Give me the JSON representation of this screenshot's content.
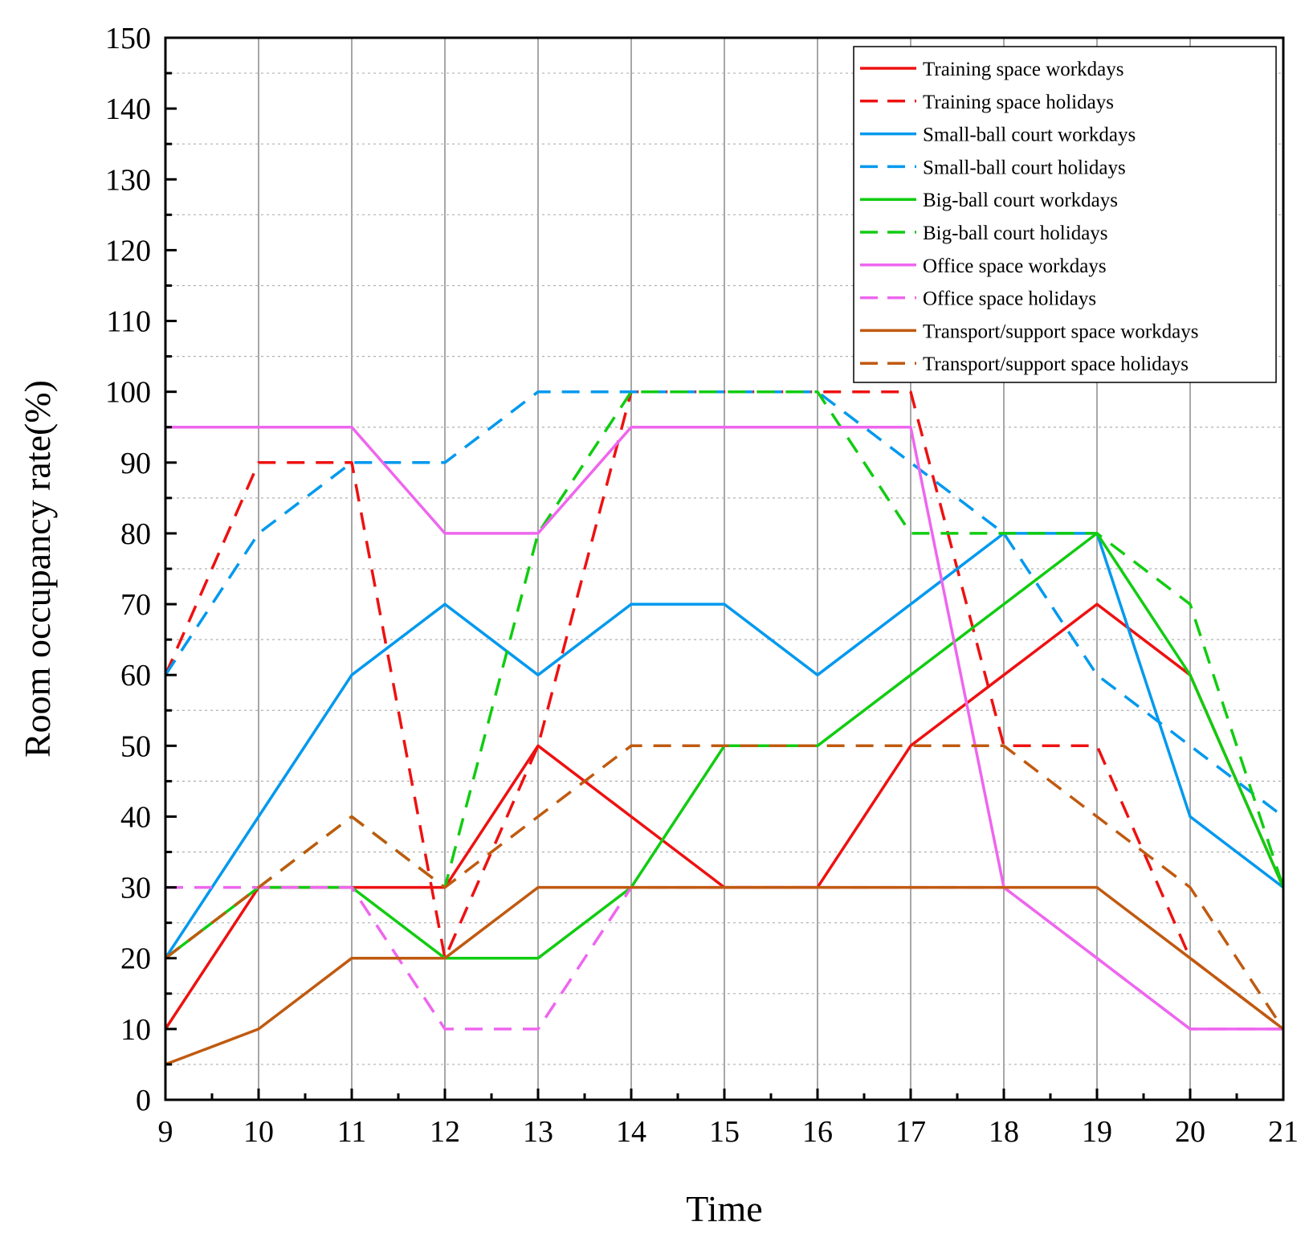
{
  "chart_data": {
    "type": "line",
    "title": "",
    "xlabel": "Time",
    "ylabel": "Room occupancy rate(%)",
    "xlim": [
      9,
      21
    ],
    "ylim": [
      0,
      150
    ],
    "x_ticks": [
      9,
      10,
      11,
      12,
      13,
      14,
      15,
      16,
      17,
      18,
      19,
      20,
      21
    ],
    "y_ticks": [
      0,
      10,
      20,
      30,
      40,
      50,
      60,
      70,
      80,
      90,
      100,
      110,
      120,
      130,
      140,
      150
    ],
    "grid": "vertical solid at major ticks, horizontal dotted at minor ticks",
    "legend_position": "top-right",
    "x": [
      9,
      10,
      11,
      12,
      13,
      14,
      15,
      16,
      17,
      18,
      19,
      20,
      21
    ],
    "series": [
      {
        "name": "Training space workdays",
        "color": "#ee1111",
        "dash": "solid",
        "values": [
          10,
          30,
          30,
          30,
          50,
          40,
          30,
          30,
          50,
          60,
          70,
          60,
          30
        ]
      },
      {
        "name": "Training space holidays",
        "color": "#ee1111",
        "dash": "dashed",
        "values": [
          60,
          90,
          90,
          20,
          50,
          100,
          100,
          100,
          100,
          50,
          50,
          20,
          10
        ]
      },
      {
        "name": "Small-ball court workdays",
        "color": "#0099ee",
        "dash": "solid",
        "values": [
          20,
          40,
          60,
          70,
          60,
          70,
          70,
          60,
          70,
          80,
          80,
          40,
          30
        ]
      },
      {
        "name": "Small-ball court holidays",
        "color": "#0099ee",
        "dash": "dashed",
        "values": [
          60,
          80,
          90,
          90,
          100,
          100,
          100,
          100,
          90,
          80,
          60,
          50,
          40
        ]
      },
      {
        "name": "Big-ball court workdays",
        "color": "#11cc11",
        "dash": "solid",
        "values": [
          20,
          30,
          30,
          20,
          20,
          30,
          50,
          50,
          60,
          70,
          80,
          60,
          30
        ]
      },
      {
        "name": "Big-ball court holidays",
        "color": "#11cc11",
        "dash": "dashed",
        "values": [
          20,
          30,
          40,
          30,
          80,
          100,
          100,
          100,
          80,
          80,
          80,
          70,
          30
        ]
      },
      {
        "name": "Office space workdays",
        "color": "#ee66ee",
        "dash": "solid",
        "values": [
          95,
          95,
          95,
          80,
          80,
          95,
          95,
          95,
          95,
          30,
          20,
          10,
          10
        ]
      },
      {
        "name": "Office space holidays",
        "color": "#ee66ee",
        "dash": "dashed",
        "values": [
          30,
          30,
          30,
          10,
          10,
          30,
          30,
          30,
          30,
          30,
          20,
          10,
          10
        ]
      },
      {
        "name": "Transport/support space workdays",
        "color": "#c05a10",
        "dash": "solid",
        "values": [
          5,
          10,
          20,
          20,
          30,
          30,
          30,
          30,
          30,
          30,
          30,
          20,
          10
        ]
      },
      {
        "name": "Transport/support space holidays",
        "color": "#c05a10",
        "dash": "dashed",
        "values": [
          20,
          30,
          40,
          30,
          40,
          50,
          50,
          50,
          50,
          50,
          40,
          30,
          10
        ]
      }
    ]
  }
}
